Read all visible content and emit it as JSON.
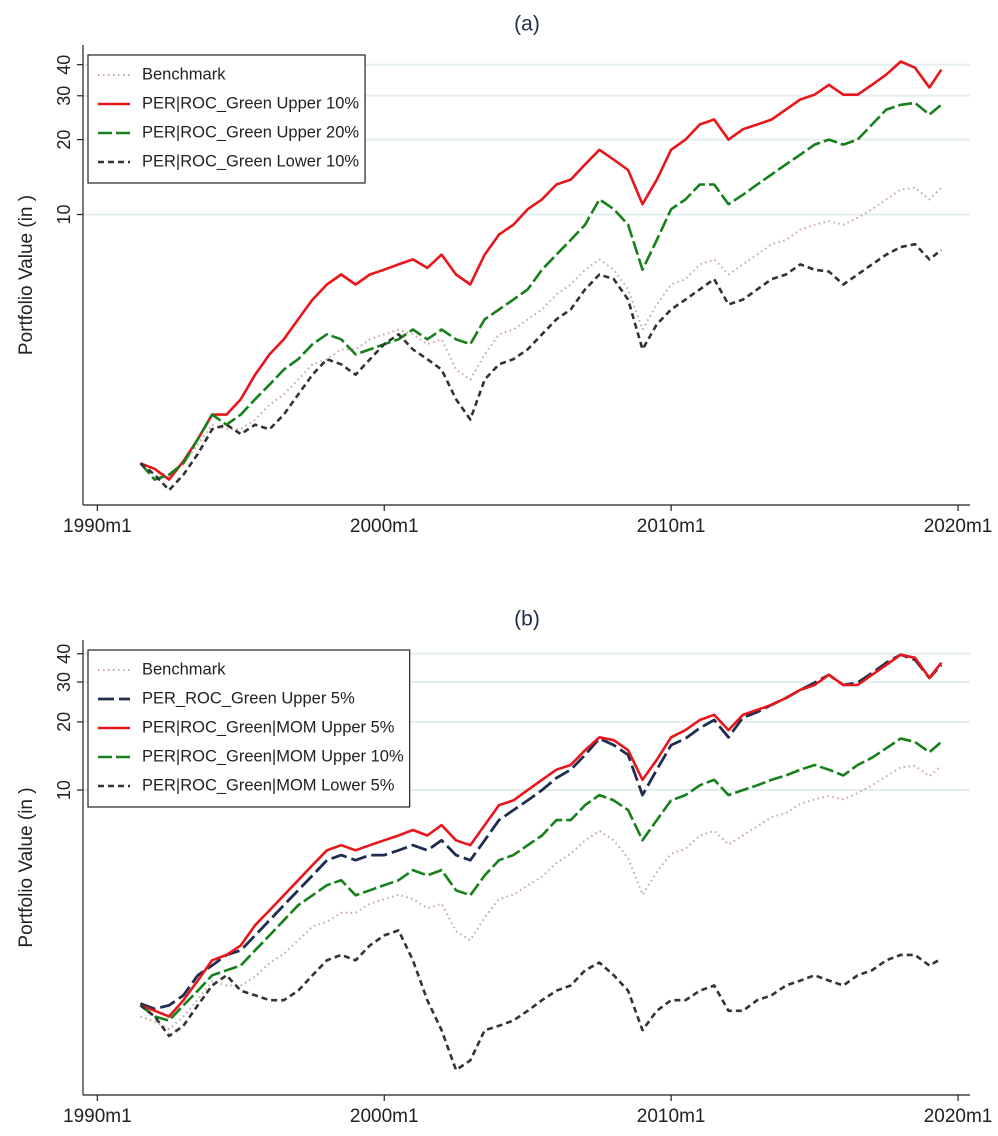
{
  "chart_data": [
    {
      "type": "line",
      "title": "(a)",
      "y_label": "Portfolio Value (in )",
      "log_y": true,
      "grid": true,
      "legend": "top-left",
      "x": [
        "1991m7",
        "1992m1",
        "1992m7",
        "1993m1",
        "1993m7",
        "1994m1",
        "1994m7",
        "1995m1",
        "1995m7",
        "1996m1",
        "1996m7",
        "1997m1",
        "1997m7",
        "1998m1",
        "1998m7",
        "1999m1",
        "1999m7",
        "2000m1",
        "2000m7",
        "2001m1",
        "2001m7",
        "2002m1",
        "2002m7",
        "2003m1",
        "2003m7",
        "2004m1",
        "2004m7",
        "2005m1",
        "2005m7",
        "2006m1",
        "2006m7",
        "2007m1",
        "2007m7",
        "2008m1",
        "2008m7",
        "2009m1",
        "2009m7",
        "2010m1",
        "2010m7",
        "2011m1",
        "2011m7",
        "2012m1",
        "2012m7",
        "2013m1",
        "2013m7",
        "2014m1",
        "2014m7",
        "2015m1",
        "2015m7",
        "2016m1",
        "2016m7",
        "2017m1",
        "2017m7",
        "2018m1",
        "2018m7",
        "2019m1",
        "2019m6"
      ],
      "xlim": [
        "1989m7",
        "2020m6"
      ],
      "xticks": [
        "1990m1",
        "2000m1",
        "2010m1",
        "2020m1"
      ],
      "ylim": [
        0.68,
        48
      ],
      "yticks": [
        10,
        20,
        30,
        40
      ],
      "series": [
        {
          "name": "Benchmark",
          "color": "#c9a3a3",
          "style": "dot",
          "values": [
            1.0,
            0.95,
            0.88,
            1.0,
            1.19,
            1.43,
            1.37,
            1.37,
            1.5,
            1.72,
            1.89,
            2.17,
            2.5,
            2.62,
            2.87,
            2.87,
            3.15,
            3.3,
            3.45,
            3.3,
            3.01,
            3.15,
            2.38,
            2.17,
            2.74,
            3.3,
            3.45,
            3.79,
            4.15,
            4.77,
            5.23,
            6.0,
            6.6,
            6.0,
            5.0,
            3.45,
            4.35,
            5.23,
            5.5,
            6.3,
            6.6,
            5.74,
            6.3,
            6.9,
            7.6,
            7.9,
            8.7,
            9.1,
            9.4,
            9.1,
            9.7,
            10.5,
            11.5,
            12.6,
            12.8,
            11.5,
            12.8
          ]
        },
        {
          "name": "PER|ROC_Green Upper 10%",
          "color": "#e8161a",
          "style": "solid",
          "values": [
            1.0,
            0.95,
            0.86,
            1.02,
            1.25,
            1.57,
            1.57,
            1.81,
            2.27,
            2.74,
            3.15,
            3.79,
            4.55,
            5.23,
            5.74,
            5.23,
            5.74,
            6.0,
            6.3,
            6.6,
            6.1,
            6.9,
            5.74,
            5.23,
            6.9,
            8.3,
            9.1,
            10.5,
            11.5,
            13.2,
            13.8,
            15.9,
            18.2,
            16.6,
            15.1,
            11.0,
            13.8,
            18.2,
            20.0,
            23.0,
            24.1,
            20.0,
            22.0,
            23.0,
            24.1,
            26.4,
            29.0,
            30.3,
            33.2,
            30.3,
            30.3,
            33.2,
            36.5,
            41.2,
            38.9,
            32.4,
            38.2
          ]
        },
        {
          "name": "PER|ROC_Green Upper 20%",
          "color": "#16801a",
          "style": "longdash",
          "values": [
            1.0,
            0.86,
            0.9,
            1.0,
            1.25,
            1.57,
            1.43,
            1.57,
            1.81,
            2.07,
            2.38,
            2.62,
            3.01,
            3.3,
            3.15,
            2.74,
            2.87,
            3.01,
            3.15,
            3.45,
            3.15,
            3.45,
            3.15,
            3.01,
            3.79,
            4.15,
            4.55,
            5.0,
            6.0,
            6.9,
            7.9,
            9.1,
            11.5,
            10.5,
            9.1,
            6.0,
            7.9,
            10.5,
            11.5,
            13.2,
            13.2,
            11.0,
            12.0,
            13.2,
            14.5,
            15.9,
            17.4,
            19.1,
            20.0,
            19.1,
            20.0,
            23.0,
            26.4,
            27.6,
            28.1,
            25.2,
            27.6
          ]
        },
        {
          "name": "PER|ROC_Green Lower 10%",
          "color": "#333333",
          "style": "dash",
          "values": [
            1.0,
            0.9,
            0.78,
            0.9,
            1.09,
            1.37,
            1.43,
            1.31,
            1.43,
            1.37,
            1.57,
            1.89,
            2.27,
            2.62,
            2.5,
            2.27,
            2.62,
            3.01,
            3.3,
            2.87,
            2.62,
            2.38,
            1.81,
            1.5,
            2.17,
            2.5,
            2.62,
            2.87,
            3.3,
            3.79,
            4.15,
            5.0,
            5.74,
            5.5,
            4.55,
            2.87,
            3.62,
            4.15,
            4.55,
            5.0,
            5.5,
            4.35,
            4.55,
            5.0,
            5.5,
            5.74,
            6.3,
            6.0,
            5.9,
            5.23,
            5.74,
            6.3,
            6.9,
            7.4,
            7.6,
            6.6,
            7.2
          ]
        }
      ]
    },
    {
      "type": "line",
      "title": "(b)",
      "y_label": "Portfolio Value (in )",
      "log_y": true,
      "grid": true,
      "legend": "top-left",
      "x": [
        "1991m7",
        "1992m1",
        "1992m7",
        "1993m1",
        "1993m7",
        "1994m1",
        "1994m7",
        "1995m1",
        "1995m7",
        "1996m1",
        "1996m7",
        "1997m1",
        "1997m7",
        "1998m1",
        "1998m7",
        "1999m1",
        "1999m7",
        "2000m1",
        "2000m7",
        "2001m1",
        "2001m7",
        "2002m1",
        "2002m7",
        "2003m1",
        "2003m7",
        "2004m1",
        "2004m7",
        "2005m1",
        "2005m7",
        "2006m1",
        "2006m7",
        "2007m1",
        "2007m7",
        "2008m1",
        "2008m7",
        "2009m1",
        "2009m7",
        "2010m1",
        "2010m7",
        "2011m1",
        "2011m7",
        "2012m1",
        "2012m7",
        "2013m1",
        "2013m7",
        "2014m1",
        "2014m7",
        "2015m1",
        "2015m7",
        "2016m1",
        "2016m7",
        "2017m1",
        "2017m7",
        "2018m1",
        "2018m7",
        "2019m1",
        "2019m6"
      ],
      "xlim": [
        "1989m7",
        "2020m6"
      ],
      "xticks": [
        "1990m1",
        "2000m1",
        "2010m1",
        "2020m1"
      ],
      "ylim": [
        0.45,
        46
      ],
      "yticks": [
        10,
        20,
        30,
        40
      ],
      "series": [
        {
          "name": "Benchmark",
          "color": "#c9a3a3",
          "style": "dot",
          "values": [
            1.0,
            0.95,
            0.88,
            1.0,
            1.19,
            1.43,
            1.37,
            1.37,
            1.5,
            1.72,
            1.89,
            2.17,
            2.5,
            2.62,
            2.87,
            2.87,
            3.15,
            3.3,
            3.45,
            3.3,
            3.01,
            3.15,
            2.38,
            2.17,
            2.74,
            3.3,
            3.45,
            3.79,
            4.15,
            4.77,
            5.23,
            6.0,
            6.6,
            6.0,
            5.0,
            3.45,
            4.35,
            5.23,
            5.5,
            6.3,
            6.6,
            5.74,
            6.3,
            6.9,
            7.6,
            7.9,
            8.7,
            9.1,
            9.4,
            9.1,
            9.7,
            10.5,
            11.5,
            12.6,
            12.8,
            11.5,
            12.8
          ]
        },
        {
          "name": "PER_ROC_Green Upper 5%",
          "color": "#1f2d50",
          "style": "navydash",
          "values": [
            1.14,
            1.08,
            1.12,
            1.24,
            1.52,
            1.68,
            1.87,
            1.96,
            2.28,
            2.66,
            3.1,
            3.61,
            4.2,
            4.9,
            5.16,
            4.9,
            5.16,
            5.16,
            5.42,
            5.71,
            5.42,
            6.0,
            5.16,
            4.9,
            6.0,
            7.37,
            8.16,
            9.0,
            10.0,
            11.3,
            12.3,
            14.3,
            16.9,
            15.8,
            14.3,
            9.5,
            12.3,
            15.8,
            16.9,
            18.8,
            20.4,
            17.1,
            20.9,
            22.1,
            23.8,
            25.5,
            27.7,
            29.8,
            32.3,
            29.1,
            29.8,
            32.9,
            36.5,
            39.6,
            37.6,
            31.3,
            35.7
          ]
        },
        {
          "name": "PER|ROC_Green|MOM Upper 5%",
          "color": "#e8161a",
          "style": "solid",
          "values": [
            1.12,
            1.06,
            1.0,
            1.18,
            1.44,
            1.77,
            1.87,
            2.06,
            2.53,
            2.94,
            3.43,
            4.0,
            4.66,
            5.42,
            5.71,
            5.42,
            5.71,
            6.0,
            6.3,
            6.66,
            6.3,
            7.0,
            6.0,
            5.71,
            7.0,
            8.58,
            9.0,
            10.0,
            11.1,
            12.3,
            12.9,
            15.0,
            17.1,
            16.6,
            15.0,
            11.1,
            13.6,
            17.1,
            18.4,
            20.4,
            21.5,
            18.4,
            21.5,
            22.6,
            23.8,
            25.5,
            27.7,
            29.1,
            32.3,
            29.1,
            29.1,
            32.3,
            35.7,
            39.6,
            38.4,
            31.3,
            36.5
          ]
        },
        {
          "name": "PER|ROC_Green|MOM Upper 10%",
          "color": "#16801a",
          "style": "longdash",
          "values": [
            1.12,
            1.0,
            0.96,
            1.12,
            1.3,
            1.52,
            1.6,
            1.68,
            1.96,
            2.28,
            2.66,
            3.1,
            3.43,
            3.8,
            4.0,
            3.43,
            3.61,
            3.8,
            4.0,
            4.43,
            4.2,
            4.43,
            3.61,
            3.43,
            4.2,
            4.9,
            5.16,
            5.71,
            6.3,
            7.37,
            7.37,
            8.58,
            9.5,
            9.0,
            8.16,
            6.0,
            7.37,
            9.0,
            9.5,
            10.5,
            11.1,
            9.5,
            10.0,
            10.5,
            11.1,
            11.6,
            12.3,
            12.9,
            12.3,
            11.6,
            12.9,
            13.9,
            15.3,
            16.9,
            16.3,
            14.7,
            16.3
          ]
        },
        {
          "name": "PER|ROC_Green|MOM Lower 5%",
          "color": "#333333",
          "style": "dash",
          "values": [
            1.12,
            1.0,
            0.82,
            0.91,
            1.12,
            1.37,
            1.52,
            1.3,
            1.24,
            1.18,
            1.18,
            1.3,
            1.52,
            1.77,
            1.87,
            1.77,
            2.06,
            2.28,
            2.4,
            1.77,
            1.18,
            0.87,
            0.58,
            0.64,
            0.87,
            0.91,
            0.96,
            1.06,
            1.18,
            1.3,
            1.37,
            1.6,
            1.73,
            1.52,
            1.3,
            0.87,
            1.06,
            1.18,
            1.18,
            1.3,
            1.37,
            1.06,
            1.06,
            1.18,
            1.24,
            1.37,
            1.44,
            1.52,
            1.44,
            1.37,
            1.52,
            1.6,
            1.77,
            1.87,
            1.87,
            1.68,
            1.8
          ]
        }
      ]
    }
  ]
}
